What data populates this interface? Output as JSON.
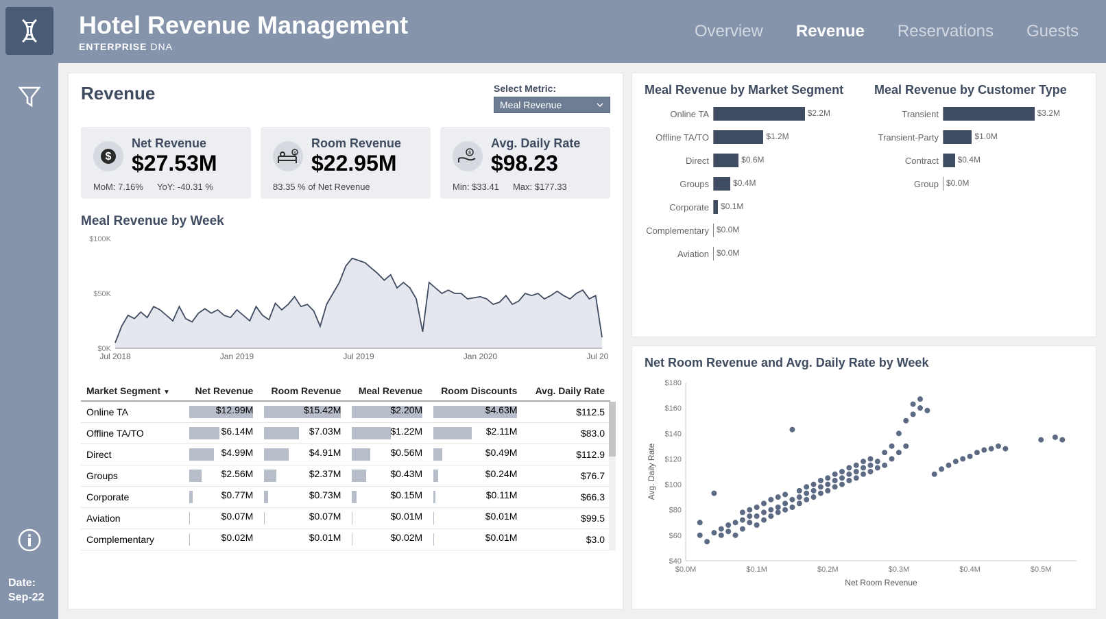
{
  "header": {
    "title": "Hotel Revenue Management",
    "subtitle_bold": "ENTERPRISE",
    "subtitle_light": "DNA",
    "tabs": [
      "Overview",
      "Revenue",
      "Reservations",
      "Guests"
    ],
    "active_tab": 1
  },
  "rail": {
    "date_label": "Date:",
    "date_value": "Sep-22"
  },
  "colors": {
    "rail_bg": "#8594ab",
    "logo_bg": "#4a5b75",
    "panel_title": "#3f4b60",
    "bar_fill": "#3f4b60",
    "table_bar": "#b8bec9",
    "area_fill": "#e4e7ed",
    "area_stroke": "#3f4b60",
    "scatter_dot": "#4a5b75"
  },
  "revenue": {
    "title": "Revenue",
    "metric_label": "Select Metric:",
    "metric_selected": "Meal Revenue",
    "kpis": [
      {
        "label": "Net Revenue",
        "value": "$27.53M",
        "sub": [
          "MoM: 7.16%",
          "YoY: -40.31 %"
        ],
        "icon": "dollar"
      },
      {
        "label": "Room Revenue",
        "value": "$22.95M",
        "sub": [
          "83.35 % of Net Revenue"
        ],
        "icon": "bed"
      },
      {
        "label": "Avg. Daily Rate",
        "value": "$98.23",
        "sub": [
          "Min: $33.41",
          "Max:  $177.33"
        ],
        "icon": "hand"
      }
    ]
  },
  "area_chart": {
    "title": "Meal Revenue by Week",
    "y_ticks": [
      "$100K",
      "$50K",
      "$0K"
    ],
    "x_ticks": [
      "Jul 2018",
      "Jan 2019",
      "Jul 2019",
      "Jan 2020",
      "Jul 2020"
    ],
    "y_max": 100,
    "series": [
      5,
      20,
      30,
      27,
      33,
      28,
      38,
      35,
      30,
      25,
      38,
      27,
      24,
      32,
      36,
      32,
      35,
      30,
      28,
      35,
      30,
      25,
      38,
      30,
      26,
      41,
      35,
      40,
      47,
      38,
      40,
      34,
      20,
      40,
      50,
      60,
      75,
      82,
      80,
      78,
      73,
      68,
      62,
      67,
      55,
      60,
      55,
      45,
      15,
      60,
      55,
      50,
      53,
      50,
      50,
      45,
      46,
      47,
      45,
      40,
      42,
      48,
      40,
      43,
      50,
      48,
      50,
      45,
      48,
      52,
      48,
      45,
      50,
      53,
      45,
      48,
      10
    ]
  },
  "table": {
    "columns": [
      "Market Segment",
      "Net Revenue",
      "Room Revenue",
      "Meal Revenue",
      "Room Discounts",
      "Avg. Daily Rate"
    ],
    "max_vals": [
      null,
      12.99,
      15.42,
      2.2,
      4.63,
      null
    ],
    "rows": [
      [
        "Online TA",
        "$12.99M",
        "$15.42M",
        "$2.20M",
        "$4.63M",
        "$112.5",
        12.99,
        15.42,
        2.2,
        4.63
      ],
      [
        "Offline TA/TO",
        "$6.14M",
        "$7.03M",
        "$1.22M",
        "$2.11M",
        "$83.0",
        6.14,
        7.03,
        1.22,
        2.11
      ],
      [
        "Direct",
        "$4.99M",
        "$4.91M",
        "$0.56M",
        "$0.49M",
        "$112.9",
        4.99,
        4.91,
        0.56,
        0.49
      ],
      [
        "Groups",
        "$2.56M",
        "$2.37M",
        "$0.43M",
        "$0.24M",
        "$76.7",
        2.56,
        2.37,
        0.43,
        0.24
      ],
      [
        "Corporate",
        "$0.77M",
        "$0.73M",
        "$0.15M",
        "$0.11M",
        "$66.3",
        0.77,
        0.73,
        0.15,
        0.11
      ],
      [
        "Aviation",
        "$0.07M",
        "$0.07M",
        "$0.01M",
        "$0.01M",
        "$99.5",
        0.07,
        0.07,
        0.01,
        0.01
      ],
      [
        "Complementary",
        "$0.02M",
        "$0.01M",
        "$0.02M",
        "$0.01M",
        "$3.0",
        0.02,
        0.01,
        0.02,
        0.01
      ]
    ]
  },
  "hbar_segment": {
    "title": "Meal Revenue by Market Segment",
    "max": 2.2,
    "rows": [
      {
        "cat": "Online TA",
        "val": 2.2,
        "label": "$2.2M"
      },
      {
        "cat": "Offline TA/TO",
        "val": 1.2,
        "label": "$1.2M"
      },
      {
        "cat": "Direct",
        "val": 0.6,
        "label": "$0.6M"
      },
      {
        "cat": "Groups",
        "val": 0.4,
        "label": "$0.4M"
      },
      {
        "cat": "Corporate",
        "val": 0.1,
        "label": "$0.1M"
      },
      {
        "cat": "Complementary",
        "val": 0.0,
        "label": "$0.0M"
      },
      {
        "cat": "Aviation",
        "val": 0.0,
        "label": "$0.0M"
      }
    ]
  },
  "hbar_customer": {
    "title": "Meal Revenue by Customer Type",
    "max": 3.2,
    "rows": [
      {
        "cat": "Transient",
        "val": 3.2,
        "label": "$3.2M"
      },
      {
        "cat": "Transient-Party",
        "val": 1.0,
        "label": "$1.0M"
      },
      {
        "cat": "Contract",
        "val": 0.4,
        "label": "$0.4M"
      },
      {
        "cat": "Group",
        "val": 0.0,
        "label": "$0.0M"
      }
    ]
  },
  "scatter": {
    "title": "Net Room Revenue and Avg. Daily Rate by Week",
    "x_label": "Net Room Revenue",
    "y_label": "Avg. Daily Rate",
    "x_ticks": [
      "$0.0M",
      "$0.1M",
      "$0.2M",
      "$0.3M",
      "$0.4M",
      "$0.5M"
    ],
    "y_ticks": [
      "$40",
      "$60",
      "$80",
      "$100",
      "$120",
      "$140",
      "$160",
      "$180"
    ],
    "x_range": [
      0,
      0.55
    ],
    "y_range": [
      40,
      180
    ],
    "points": [
      [
        0.02,
        70
      ],
      [
        0.02,
        60
      ],
      [
        0.03,
        55
      ],
      [
        0.04,
        93
      ],
      [
        0.04,
        62
      ],
      [
        0.05,
        60
      ],
      [
        0.05,
        65
      ],
      [
        0.06,
        63
      ],
      [
        0.06,
        68
      ],
      [
        0.07,
        60
      ],
      [
        0.07,
        70
      ],
      [
        0.08,
        65
      ],
      [
        0.08,
        72
      ],
      [
        0.08,
        78
      ],
      [
        0.09,
        70
      ],
      [
        0.09,
        75
      ],
      [
        0.09,
        80
      ],
      [
        0.1,
        68
      ],
      [
        0.1,
        75
      ],
      [
        0.1,
        82
      ],
      [
        0.11,
        72
      ],
      [
        0.11,
        78
      ],
      [
        0.11,
        85
      ],
      [
        0.12,
        75
      ],
      [
        0.12,
        80
      ],
      [
        0.12,
        88
      ],
      [
        0.13,
        78
      ],
      [
        0.13,
        82
      ],
      [
        0.13,
        90
      ],
      [
        0.14,
        80
      ],
      [
        0.14,
        85
      ],
      [
        0.14,
        92
      ],
      [
        0.15,
        82
      ],
      [
        0.15,
        88
      ],
      [
        0.15,
        143
      ],
      [
        0.16,
        85
      ],
      [
        0.16,
        90
      ],
      [
        0.16,
        95
      ],
      [
        0.17,
        88
      ],
      [
        0.17,
        93
      ],
      [
        0.17,
        98
      ],
      [
        0.18,
        90
      ],
      [
        0.18,
        95
      ],
      [
        0.18,
        100
      ],
      [
        0.19,
        93
      ],
      [
        0.19,
        98
      ],
      [
        0.19,
        103
      ],
      [
        0.2,
        95
      ],
      [
        0.2,
        100
      ],
      [
        0.2,
        105
      ],
      [
        0.21,
        98
      ],
      [
        0.21,
        103
      ],
      [
        0.21,
        108
      ],
      [
        0.22,
        100
      ],
      [
        0.22,
        105
      ],
      [
        0.22,
        110
      ],
      [
        0.23,
        103
      ],
      [
        0.23,
        108
      ],
      [
        0.23,
        113
      ],
      [
        0.24,
        105
      ],
      [
        0.24,
        110
      ],
      [
        0.24,
        115
      ],
      [
        0.25,
        108
      ],
      [
        0.25,
        113
      ],
      [
        0.25,
        118
      ],
      [
        0.26,
        110
      ],
      [
        0.26,
        115
      ],
      [
        0.26,
        120
      ],
      [
        0.27,
        113
      ],
      [
        0.27,
        118
      ],
      [
        0.28,
        115
      ],
      [
        0.28,
        125
      ],
      [
        0.29,
        120
      ],
      [
        0.29,
        130
      ],
      [
        0.3,
        125
      ],
      [
        0.3,
        140
      ],
      [
        0.31,
        130
      ],
      [
        0.31,
        150
      ],
      [
        0.32,
        155
      ],
      [
        0.32,
        163
      ],
      [
        0.33,
        160
      ],
      [
        0.33,
        167
      ],
      [
        0.34,
        158
      ],
      [
        0.35,
        108
      ],
      [
        0.36,
        112
      ],
      [
        0.37,
        115
      ],
      [
        0.38,
        118
      ],
      [
        0.39,
        120
      ],
      [
        0.4,
        122
      ],
      [
        0.41,
        125
      ],
      [
        0.42,
        127
      ],
      [
        0.43,
        128
      ],
      [
        0.44,
        130
      ],
      [
        0.45,
        128
      ],
      [
        0.5,
        135
      ],
      [
        0.52,
        137
      ],
      [
        0.53,
        135
      ]
    ]
  }
}
